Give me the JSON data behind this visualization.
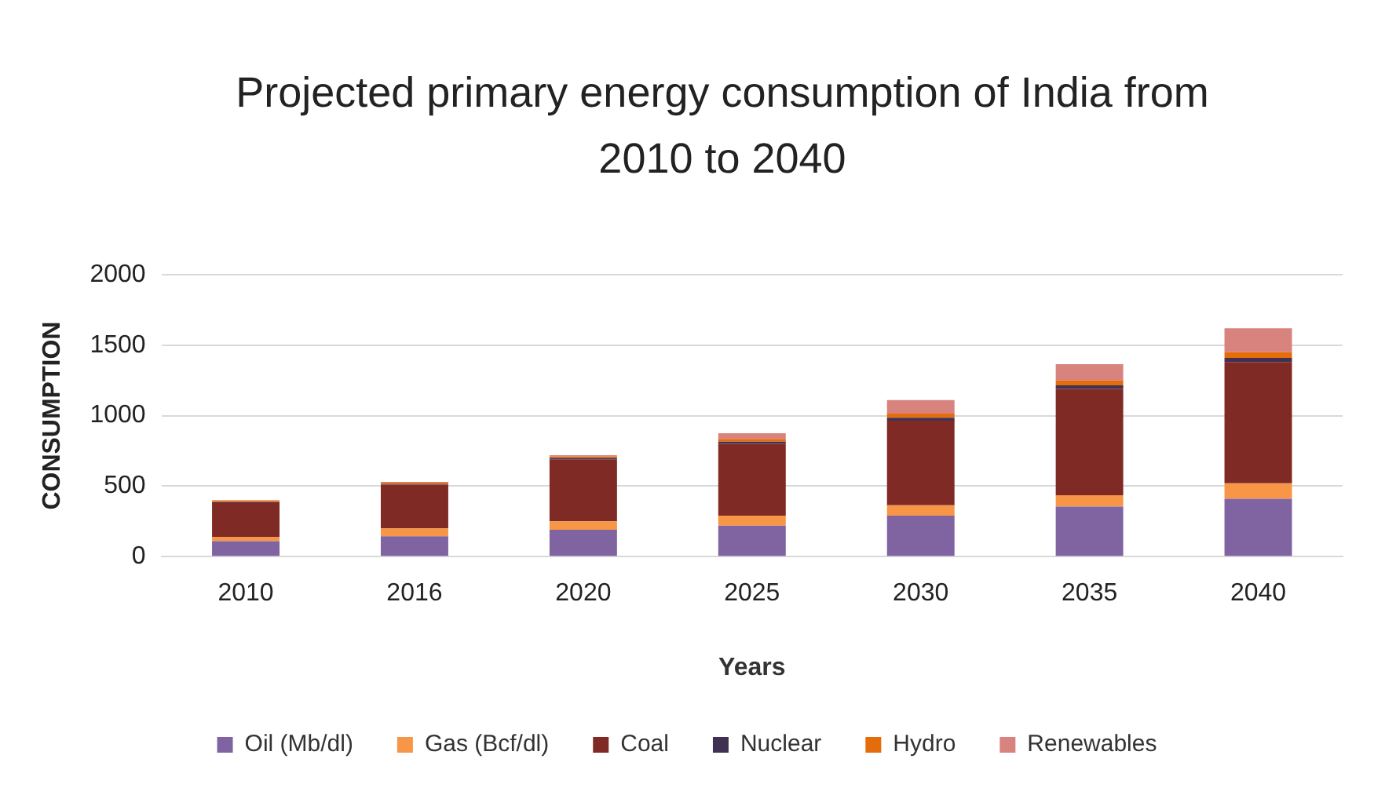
{
  "chart_data": {
    "type": "bar",
    "title": "Projected primary energy consumption of India  from 2010 to 2040",
    "xlabel": "Years",
    "ylabel": "CONSUMPTION",
    "categories": [
      "2010",
      "2016",
      "2020",
      "2025",
      "2030",
      "2035",
      "2040"
    ],
    "stacked": true,
    "series": [
      {
        "name": "Oil (Mb/dl)",
        "color": "#8064a2",
        "values": [
          110,
          145,
          190,
          220,
          290,
          355,
          410
        ]
      },
      {
        "name": "Gas (Bcf/dl)",
        "color": "#f79646",
        "values": [
          30,
          55,
          60,
          70,
          75,
          80,
          110
        ]
      },
      {
        "name": "Coal",
        "color": "#7f2a24",
        "values": [
          240,
          310,
          440,
          510,
          600,
          755,
          860
        ]
      },
      {
        "name": "Nuclear",
        "color": "#403152",
        "values": [
          5,
          5,
          10,
          15,
          20,
          25,
          30
        ]
      },
      {
        "name": "Hydro",
        "color": "#e46c0a",
        "values": [
          10,
          10,
          10,
          20,
          30,
          35,
          40
        ]
      },
      {
        "name": "Renewables",
        "color": "#d9837f",
        "values": [
          5,
          5,
          10,
          40,
          95,
          115,
          170
        ]
      }
    ],
    "ylim": [
      0,
      2000
    ],
    "yticks": [
      0,
      500,
      1000,
      1500,
      2000
    ],
    "grid": "y",
    "legend": "bottom"
  }
}
